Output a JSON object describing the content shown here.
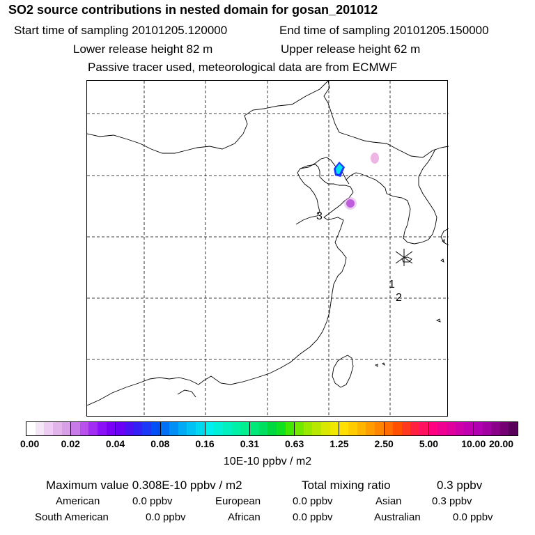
{
  "header": {
    "title": "SO2 source contributions in nested domain for gosan_201012",
    "start_time": "Start time of sampling 20101205.120000",
    "end_time": "End time of sampling 20101205.150000",
    "lower_height": "Lower release height   82 m",
    "upper_height": "Upper release height   62 m",
    "tracer_note": "Passive tracer used, meteorological data are from ECMWF"
  },
  "map": {
    "markers": [
      "1",
      "2",
      "3"
    ],
    "receptor_icon": "asterisk-receptor-icon",
    "colors": {
      "plume_core": "#00e5e5",
      "plume_ring": "#1a33ff",
      "plume_violet": "#9900cc",
      "plume_pink": "#e07ad0",
      "coast": "#000000",
      "grid": "#000000"
    }
  },
  "colorbar": {
    "ticks": [
      "0.00",
      "0.02",
      "0.04",
      "0.08",
      "0.16",
      "0.31",
      "0.63",
      "1.25",
      "2.50",
      "5.00",
      "10.00",
      "20.00"
    ],
    "unit": "10E-10 ppbv / m2",
    "segments": [
      [
        "#ffffff",
        "#f5e6f7",
        "#edcdf1",
        "#e3b3ec",
        "#d9a0e8"
      ],
      [
        "#c87ae8",
        "#b850ee",
        "#a22cf2",
        "#8c10f5",
        "#7a00f5"
      ],
      [
        "#6a00f5",
        "#4d10f5",
        "#3320f5",
        "#1a38f5",
        "#0050f5"
      ],
      [
        "#0070f5",
        "#0090f5",
        "#00aaf5",
        "#00c2f5",
        "#00d8f0"
      ],
      [
        "#00f0f0",
        "#00f0d8",
        "#00f0c0",
        "#00f0a8",
        "#00f090"
      ],
      [
        "#00e878",
        "#00e060",
        "#00d840",
        "#10e020",
        "#40e800"
      ],
      [
        "#70e800",
        "#98e800",
        "#b8e800",
        "#d8e800",
        "#f0e800"
      ],
      [
        "#ffe000",
        "#ffcc00",
        "#ffb400",
        "#ff9c00",
        "#ff8400"
      ],
      [
        "#ff6c00",
        "#ff5000",
        "#ff3820",
        "#ff2040",
        "#ff1060"
      ],
      [
        "#ff0080",
        "#f00090",
        "#e0009c",
        "#d000a8",
        "#c000b0"
      ],
      [
        "#b000b0",
        "#a000a0",
        "#8a008a",
        "#740074",
        "#5a005a"
      ]
    ]
  },
  "summary": {
    "max_label": "Maximum value  0.308E-10 ppbv / m2",
    "total_label": "Total mixing ratio",
    "total_value": "0.3 ppbv",
    "regions": [
      {
        "label": "American",
        "value": "0.0 ppbv"
      },
      {
        "label": "European",
        "value": "0.0 ppbv"
      },
      {
        "label": "Asian",
        "value": "0.3 ppbv"
      },
      {
        "label": "South American",
        "value": "0.0 ppbv"
      },
      {
        "label": "African",
        "value": "0.0 ppbv"
      },
      {
        "label": "Australian",
        "value": "0.0 ppbv"
      }
    ]
  }
}
